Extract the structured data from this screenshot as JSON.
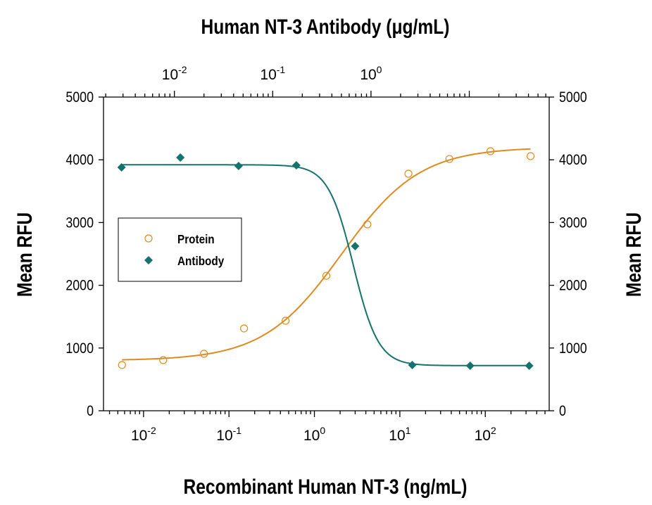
{
  "chart_data": {
    "type": "scatter",
    "title": "Human NT-3 Antibody (μg/mL)",
    "xlabel": "Recombinant Human NT-3 (ng/mL)",
    "ylabel": "Mean RFU",
    "ylabel_right": "Mean RFU",
    "x_scale": "log",
    "xlim": [
      0.0034,
      560
    ],
    "x_top_scale": "log",
    "x_top_label": "Human NT-3 Antibody (μg/mL)",
    "x_top_lim": [
      0.0019,
      65
    ],
    "ylim": [
      0,
      5000
    ],
    "y_ticks": [
      "0",
      "1000",
      "2000",
      "3000",
      "4000",
      "5000"
    ],
    "x_ticks": [
      {
        "base": "10",
        "exp": "-2"
      },
      {
        "base": "10",
        "exp": "-1"
      },
      {
        "base": "10",
        "exp": "0"
      },
      {
        "base": "10",
        "exp": "1"
      },
      {
        "base": "10",
        "exp": "2"
      }
    ],
    "x_top_ticks": [
      {
        "base": "10",
        "exp": "-2"
      },
      {
        "base": "10",
        "exp": "-1"
      },
      {
        "base": "10",
        "exp": "0"
      }
    ],
    "grid": false,
    "legend_position": "center-left",
    "series": [
      {
        "name": "Protein",
        "axis": "bottom",
        "marker": "open-circle",
        "color": "#E08A1E",
        "x": [
          0.0056,
          0.017,
          0.051,
          0.15,
          0.46,
          1.38,
          4.17,
          12.6,
          38,
          115,
          339
        ],
        "y": [
          729,
          807,
          908,
          1312,
          1435,
          2152,
          2971,
          3778,
          4013,
          4137,
          4058
        ],
        "fit": {
          "bottom": 800,
          "top": 4200,
          "log_ec50": 0.32,
          "hill": 0.95
        }
      },
      {
        "name": "Antibody",
        "axis": "top",
        "marker": "filled-diamond",
        "color": "#14736C",
        "x": [
          0.0029,
          0.0115,
          0.045,
          0.174,
          0.69,
          2.63,
          10.2,
          40.7
        ],
        "y": [
          3879,
          4036,
          3901,
          3912,
          2623,
          729,
          717,
          717
        ],
        "fit": {
          "bottom": 720,
          "top": 3920,
          "log_ec50": -0.18,
          "hill": 3.4
        }
      }
    ]
  }
}
